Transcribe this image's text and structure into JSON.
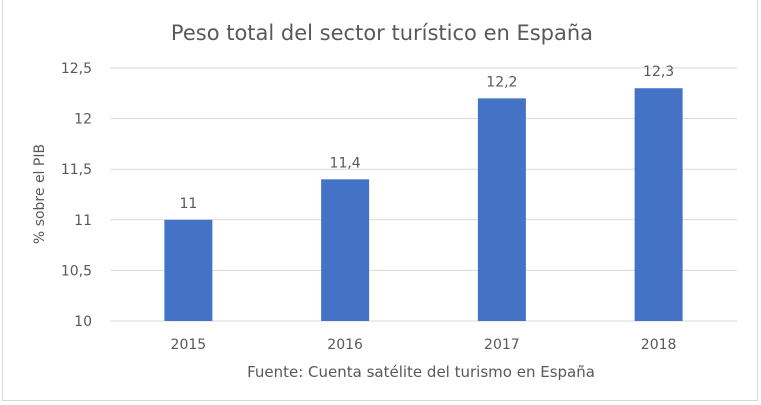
{
  "chart_data": {
    "type": "bar",
    "title": "Peso total del sector turístico en España",
    "xlabel": "Fuente: Cuenta satélite del turismo en España",
    "ylabel": "% sobre el PIB",
    "categories": [
      "2015",
      "2016",
      "2017",
      "2018"
    ],
    "values": [
      11,
      11.4,
      12.2,
      12.3
    ],
    "data_labels": [
      "11",
      "11,4",
      "12,2",
      "12,3"
    ],
    "ylim": [
      10,
      12.5
    ],
    "yticks": [
      10,
      10.5,
      11,
      11.5,
      12,
      12.5
    ],
    "ytick_labels": [
      "10",
      "10,5",
      "11",
      "11,5",
      "12",
      "12,5"
    ],
    "grid": true,
    "legend": "none",
    "bar_color": "#4472c4",
    "grid_color": "#d9d9d9"
  }
}
